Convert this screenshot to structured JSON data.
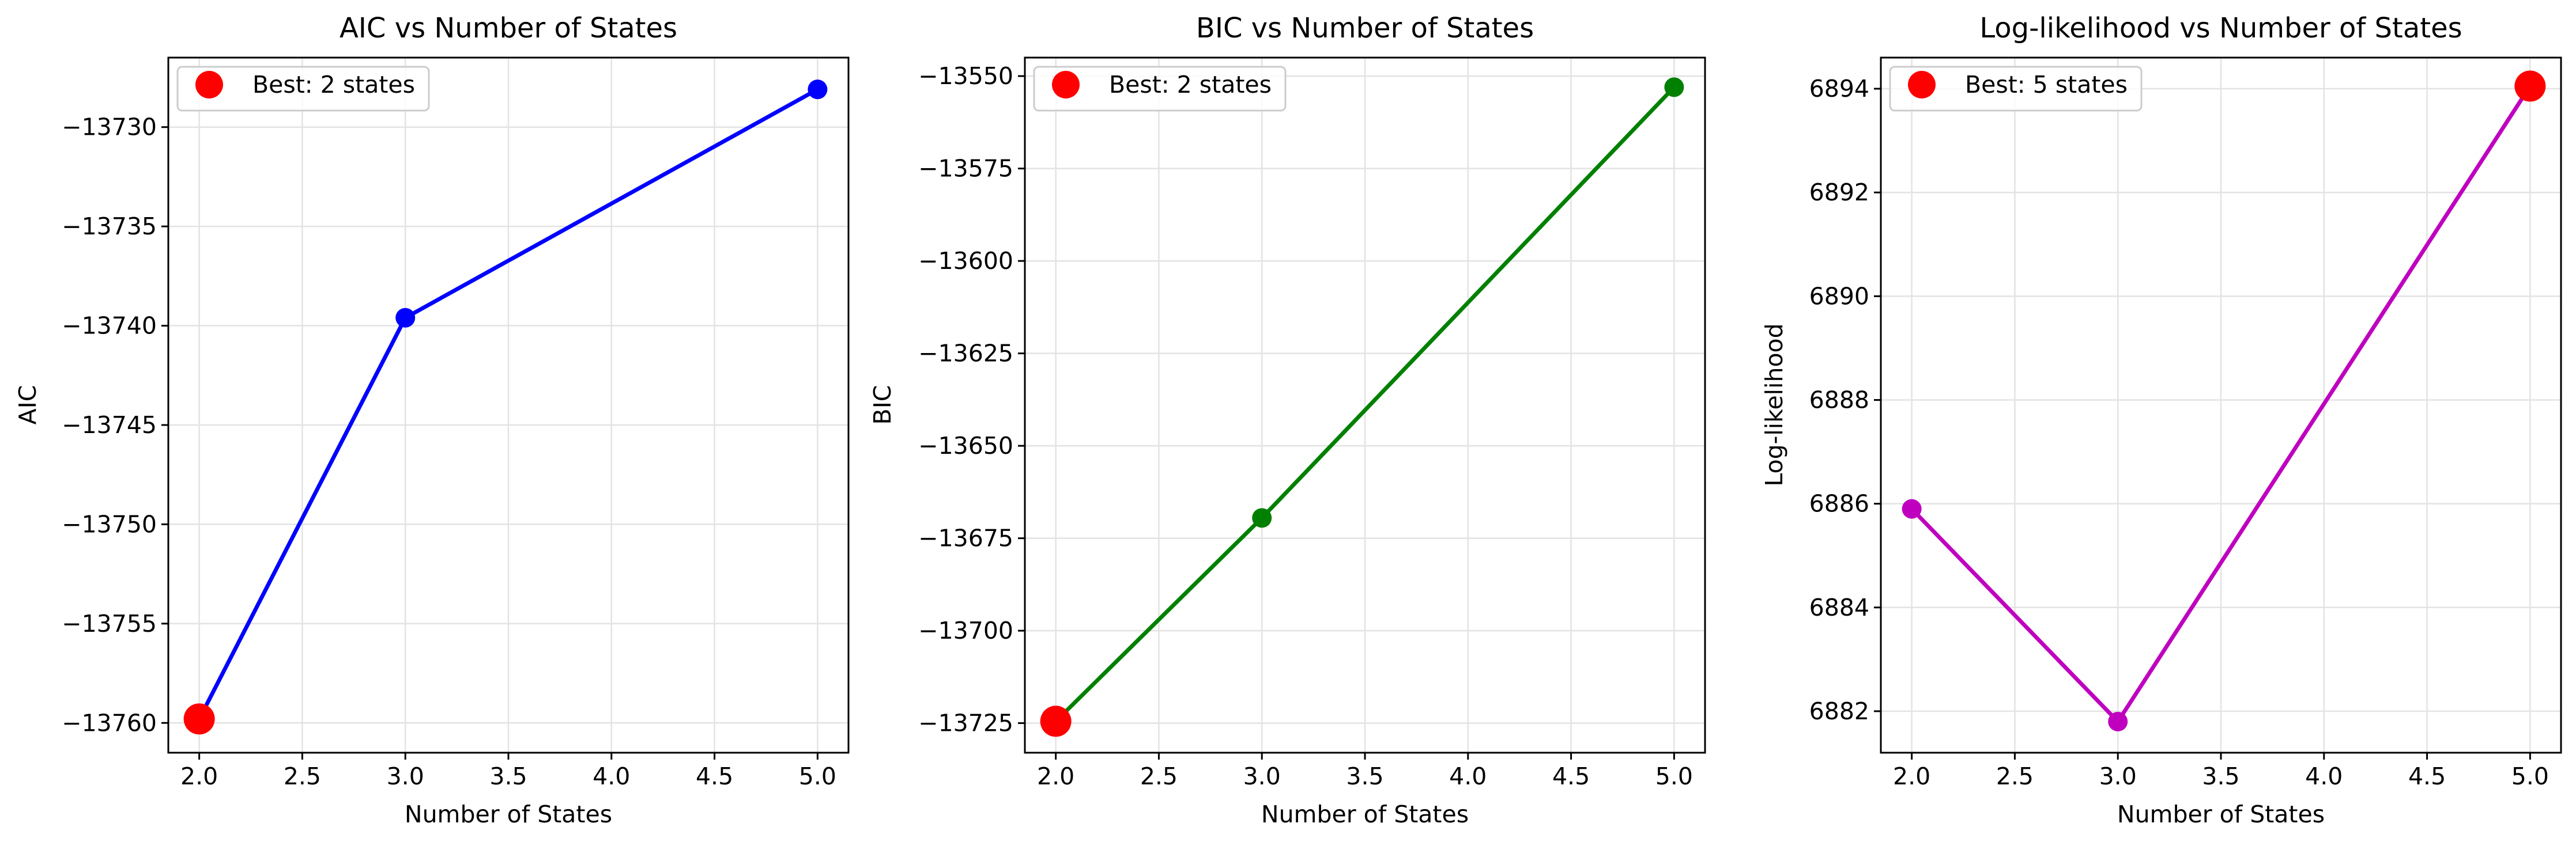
{
  "chart_data": [
    {
      "type": "line",
      "title": "AIC vs Number of States",
      "xlabel": "Number of States",
      "ylabel": "AIC",
      "x": [
        2,
        3,
        5
      ],
      "series": [
        {
          "values": [
            -13759.8,
            -13739.6,
            -13728.1
          ],
          "color": "#0000ff"
        }
      ],
      "best": {
        "label": "Best: 2 states",
        "x": 2,
        "y": -13759.8,
        "color": "#ff0000"
      },
      "xlim": [
        1.85,
        5.15
      ],
      "ylim": [
        -13761.5,
        -13726.5
      ],
      "xticks": [
        2.0,
        2.5,
        3.0,
        3.5,
        4.0,
        4.5,
        5.0
      ],
      "xtick_labels": [
        "2.0",
        "2.5",
        "3.0",
        "3.5",
        "4.0",
        "4.5",
        "5.0"
      ],
      "yticks": [
        -13760,
        -13755,
        -13750,
        -13745,
        -13740,
        -13735,
        -13730
      ],
      "ytick_labels": [
        "−13760",
        "−13755",
        "−13750",
        "−13745",
        "−13740",
        "−13735",
        "−13730"
      ],
      "grid": true,
      "legend_position": "upper-left"
    },
    {
      "type": "line",
      "title": "BIC vs Number of States",
      "xlabel": "Number of States",
      "ylabel": "BIC",
      "x": [
        2,
        3,
        5
      ],
      "series": [
        {
          "values": [
            -13724.5,
            -13669.5,
            -13553.0
          ],
          "color": "#008000"
        }
      ],
      "best": {
        "label": "Best: 2 states",
        "x": 2,
        "y": -13724.5,
        "color": "#ff0000"
      },
      "xlim": [
        1.85,
        5.15
      ],
      "ylim": [
        -13733,
        -13545
      ],
      "xticks": [
        2.0,
        2.5,
        3.0,
        3.5,
        4.0,
        4.5,
        5.0
      ],
      "xtick_labels": [
        "2.0",
        "2.5",
        "3.0",
        "3.5",
        "4.0",
        "4.5",
        "5.0"
      ],
      "yticks": [
        -13725,
        -13700,
        -13675,
        -13650,
        -13625,
        -13600,
        -13575,
        -13550
      ],
      "ytick_labels": [
        "−13725",
        "−13700",
        "−13675",
        "−13650",
        "−13625",
        "−13600",
        "−13575",
        "−13550"
      ],
      "grid": true,
      "legend_position": "upper-left"
    },
    {
      "type": "line",
      "title": "Log-likelihood vs Number of States",
      "xlabel": "Number of States",
      "ylabel": "Log-likelihood",
      "x": [
        2,
        3,
        5
      ],
      "series": [
        {
          "values": [
            6885.9,
            6881.8,
            6894.05
          ],
          "color": "#bf00bf"
        }
      ],
      "best": {
        "label": "Best: 5 states",
        "x": 5,
        "y": 6894.05,
        "color": "#ff0000"
      },
      "xlim": [
        1.85,
        5.15
      ],
      "ylim": [
        6881.2,
        6894.6
      ],
      "xticks": [
        2.0,
        2.5,
        3.0,
        3.5,
        4.0,
        4.5,
        5.0
      ],
      "xtick_labels": [
        "2.0",
        "2.5",
        "3.0",
        "3.5",
        "4.0",
        "4.5",
        "5.0"
      ],
      "yticks": [
        6882,
        6884,
        6886,
        6888,
        6890,
        6892,
        6894
      ],
      "ytick_labels": [
        "6882",
        "6884",
        "6886",
        "6888",
        "6890",
        "6892",
        "6894"
      ],
      "grid": true,
      "legend_position": "upper-left"
    }
  ]
}
